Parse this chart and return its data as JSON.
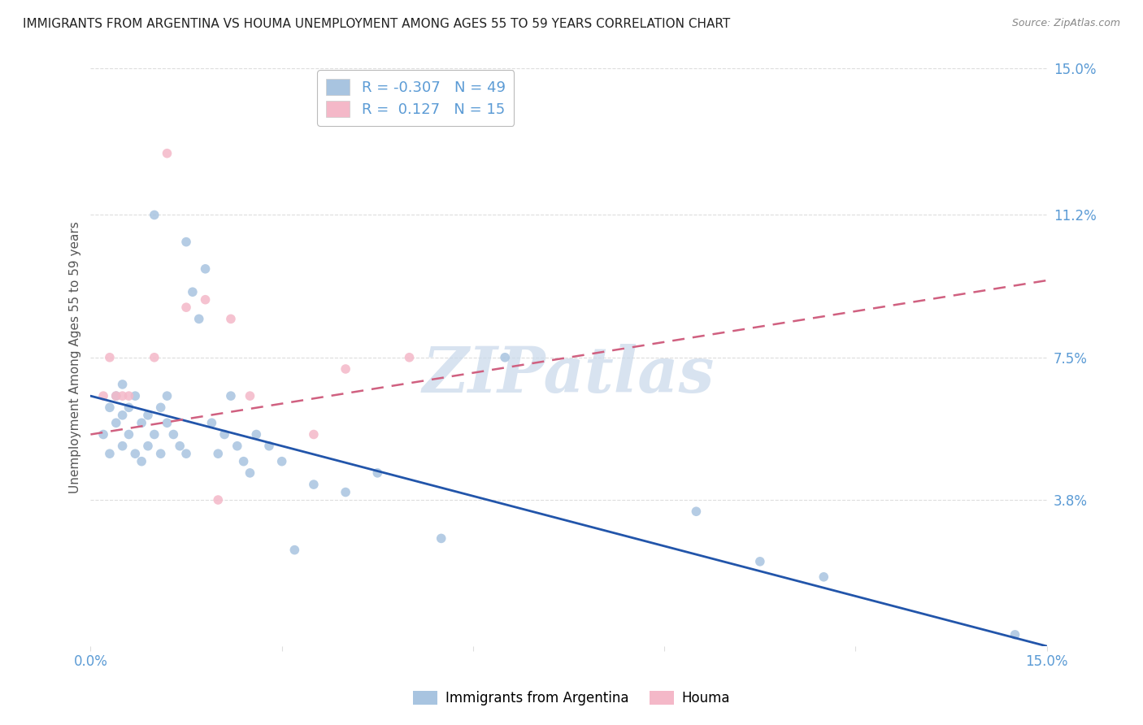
{
  "title": "IMMIGRANTS FROM ARGENTINA VS HOUMA UNEMPLOYMENT AMONG AGES 55 TO 59 YEARS CORRELATION CHART",
  "source": "Source: ZipAtlas.com",
  "ylabel": "Unemployment Among Ages 55 to 59 years",
  "xlim": [
    0.0,
    15.0
  ],
  "ylim": [
    0.0,
    15.0
  ],
  "yticks": [
    0.0,
    3.8,
    7.5,
    11.2,
    15.0
  ],
  "ytick_labels": [
    "",
    "3.8%",
    "7.5%",
    "11.2%",
    "15.0%"
  ],
  "watermark": "ZIPatlas",
  "legend_labels": [
    "Immigrants from Argentina",
    "Houma"
  ],
  "blue_scatter_x": [
    0.2,
    0.3,
    0.3,
    0.4,
    0.4,
    0.5,
    0.5,
    0.5,
    0.6,
    0.6,
    0.7,
    0.7,
    0.8,
    0.8,
    0.9,
    0.9,
    1.0,
    1.0,
    1.1,
    1.1,
    1.2,
    1.2,
    1.3,
    1.4,
    1.5,
    1.5,
    1.6,
    1.7,
    1.8,
    1.9,
    2.0,
    2.1,
    2.2,
    2.3,
    2.4,
    2.5,
    2.6,
    2.8,
    3.0,
    3.2,
    3.5,
    4.0,
    4.5,
    5.5,
    6.5,
    9.5,
    10.5,
    11.5,
    14.5
  ],
  "blue_scatter_y": [
    5.5,
    5.0,
    6.2,
    5.8,
    6.5,
    5.2,
    6.0,
    6.8,
    5.5,
    6.2,
    5.0,
    6.5,
    5.8,
    4.8,
    6.0,
    5.2,
    11.2,
    5.5,
    6.2,
    5.0,
    5.8,
    6.5,
    5.5,
    5.2,
    10.5,
    5.0,
    9.2,
    8.5,
    9.8,
    5.8,
    5.0,
    5.5,
    6.5,
    5.2,
    4.8,
    4.5,
    5.5,
    5.2,
    4.8,
    2.5,
    4.2,
    4.0,
    4.5,
    2.8,
    7.5,
    3.5,
    2.2,
    1.8,
    0.3
  ],
  "pink_scatter_x": [
    0.2,
    0.3,
    0.4,
    0.5,
    0.6,
    1.0,
    1.5,
    1.8,
    2.0,
    2.2,
    2.5,
    3.5,
    4.0,
    5.0,
    1.2
  ],
  "pink_scatter_y": [
    6.5,
    7.5,
    6.5,
    6.5,
    6.5,
    7.5,
    8.8,
    9.0,
    3.8,
    8.5,
    6.5,
    5.5,
    7.2,
    7.5,
    12.8
  ],
  "blue_line_y0": 6.5,
  "blue_line_y1": 0.0,
  "pink_line_y0": 5.5,
  "pink_line_y1": 9.5,
  "bg_color": "#ffffff",
  "plot_bg_color": "#ffffff",
  "title_color": "#222222",
  "source_color": "#888888",
  "grid_color": "#dddddd",
  "tick_color": "#5b9bd5",
  "scatter_blue": "#a8c4e0",
  "scatter_pink": "#f4b8c8",
  "line_blue": "#2255aa",
  "line_pink": "#d06080",
  "watermark_color": "#c8d8ea",
  "scatter_size": 70,
  "legend_R1": "R = -0.307",
  "legend_N1": "N = 49",
  "legend_R2": "R =  0.127",
  "legend_N2": "N = 15"
}
